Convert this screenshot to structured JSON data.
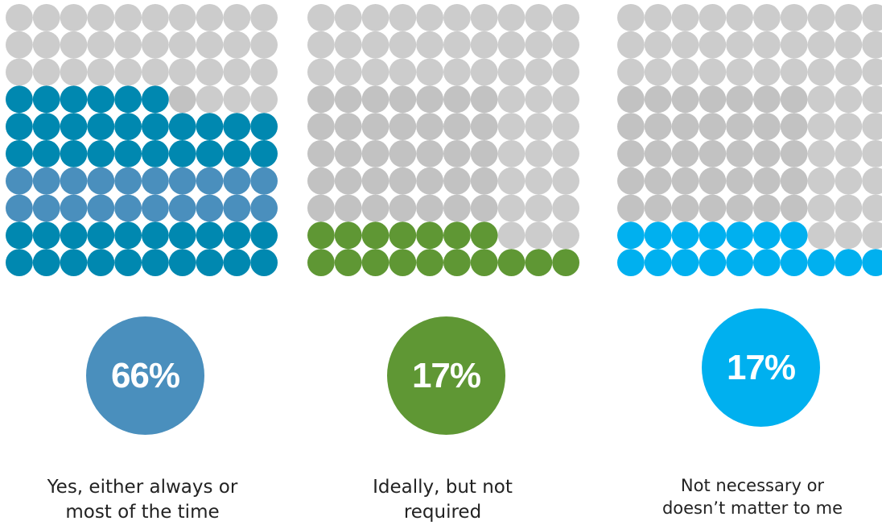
{
  "chart_data": [
    {
      "type": "waffle",
      "grid": {
        "rows": 10,
        "cols": 10
      },
      "value_percent": 66,
      "value_label": "66%",
      "label_lines": [
        "Yes, either always or",
        "most of the time"
      ],
      "colors": {
        "filled": "#0088b0",
        "filled_alt": "#4a8fbd",
        "empty": "#cccccc",
        "empty_alt": "#c2c2c2",
        "badge": "#4a8fbd"
      }
    },
    {
      "type": "waffle",
      "grid": {
        "rows": 10,
        "cols": 10
      },
      "value_percent": 17,
      "value_label": "17%",
      "label_lines": [
        "Ideally, but not",
        "required"
      ],
      "colors": {
        "filled": "#5f9734",
        "empty": "#cccccc",
        "empty_alt": "#c2c2c2",
        "badge": "#5f9734"
      }
    },
    {
      "type": "waffle",
      "grid": {
        "rows": 10,
        "cols": 10
      },
      "value_percent": 17,
      "value_label": "17%",
      "label_lines": [
        "Not necessary or",
        "doesn’t matter to me"
      ],
      "colors": {
        "filled": "#00b0ef",
        "empty": "#cccccc",
        "empty_alt": "#c2c2c2",
        "badge": "#00b0ef"
      }
    }
  ]
}
